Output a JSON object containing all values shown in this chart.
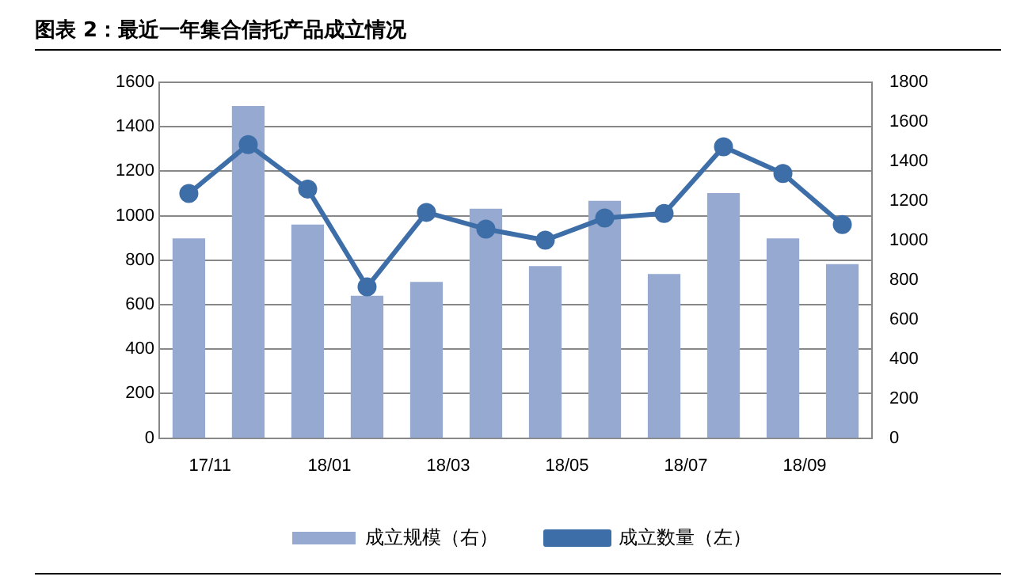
{
  "chart_data": {
    "type": "bar",
    "title": "图表 2：最近一年集合信托产品成立情况",
    "categories": [
      "17/11",
      null,
      "18/01",
      null,
      "18/03",
      null,
      "18/05",
      null,
      "18/07",
      null,
      "18/09",
      null
    ],
    "series": [
      {
        "name": "成立规模（右）",
        "axis": "y2",
        "color": "#95a9d1",
        "values": [
          1010,
          1680,
          1080,
          720,
          790,
          1160,
          870,
          1200,
          830,
          1240,
          1010,
          880
        ]
      },
      {
        "name": "成立数量（左）",
        "type": "line",
        "color": "#3e6ea8",
        "marker": "circle",
        "values": [
          1100,
          1320,
          1120,
          680,
          1015,
          940,
          890,
          990,
          1010,
          1310,
          1190,
          960
        ]
      }
    ],
    "ylim": [
      0,
      1600
    ],
    "yticks": [
      0,
      200,
      400,
      600,
      800,
      1000,
      1200,
      1400,
      1600
    ],
    "y2lim": [
      0,
      1800
    ],
    "y2ticks": [
      0,
      200,
      400,
      600,
      800,
      1000,
      1200,
      1400,
      1600,
      1800
    ],
    "grid": "y",
    "legend": "bottom"
  }
}
